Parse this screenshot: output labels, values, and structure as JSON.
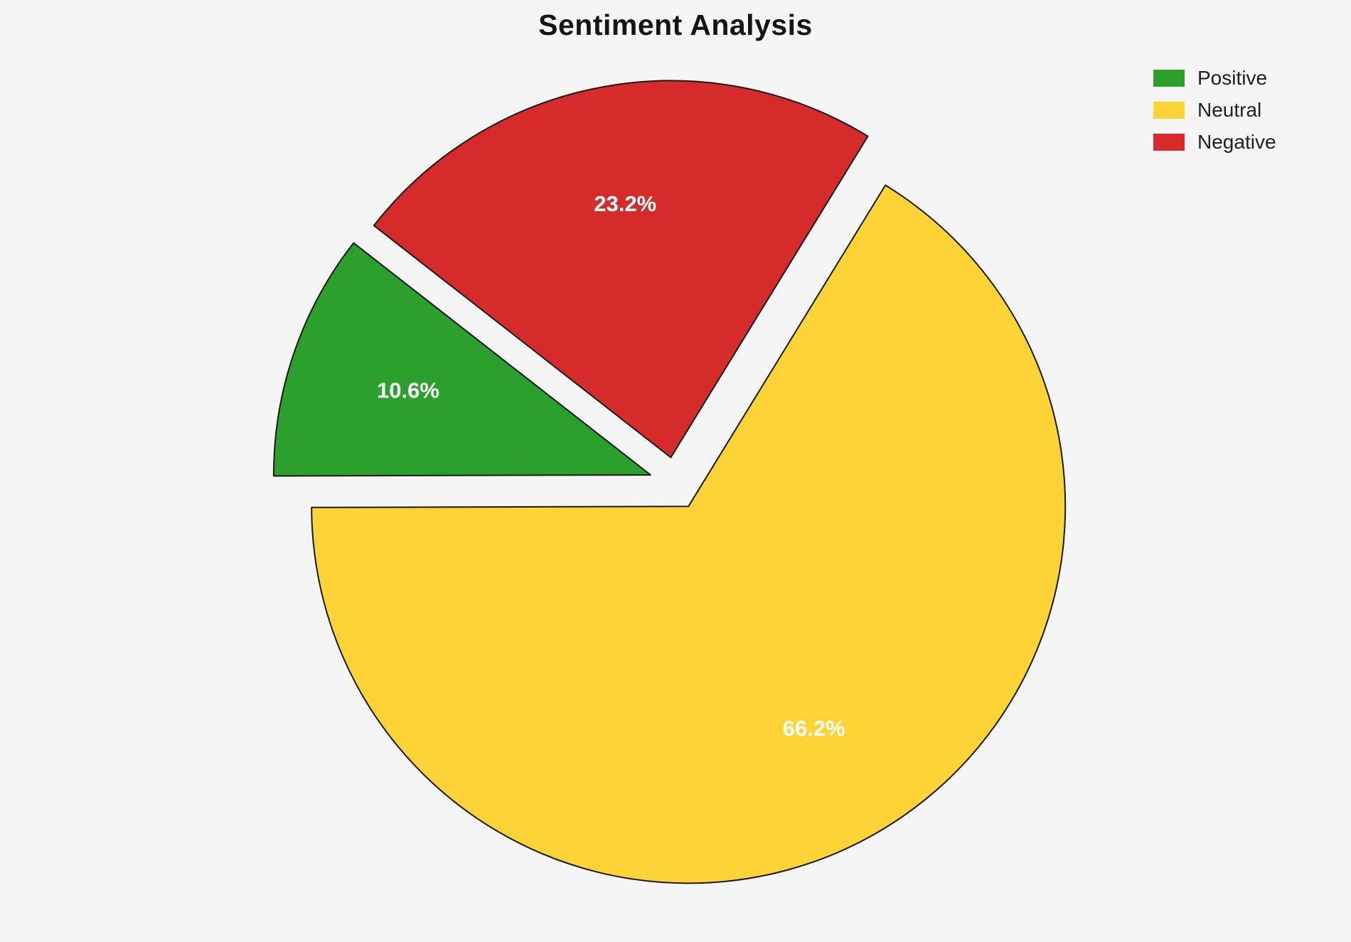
{
  "chart_data": {
    "type": "pie",
    "title": "Sentiment Analysis",
    "labels": [
      "Positive",
      "Neutral",
      "Negative"
    ],
    "values": [
      10.6,
      66.2,
      23.2
    ],
    "pct_labels": [
      "10.6%",
      "66.2%",
      "23.2%"
    ],
    "colors": [
      "#2ca02c",
      "#fdd335",
      "#d62b2b"
    ],
    "background": "#f5f5f5",
    "edge_color": "#1a1a1a",
    "start_angle": 142,
    "direction": "counterclockwise",
    "explode": 0.07,
    "pct_distance": 0.68,
    "legend": {
      "position": "upper right",
      "entries": [
        {
          "label": "Positive",
          "color": "#2ca02c"
        },
        {
          "label": "Neutral",
          "color": "#fdd335"
        },
        {
          "label": "Negative",
          "color": "#d62b2b"
        }
      ]
    }
  }
}
